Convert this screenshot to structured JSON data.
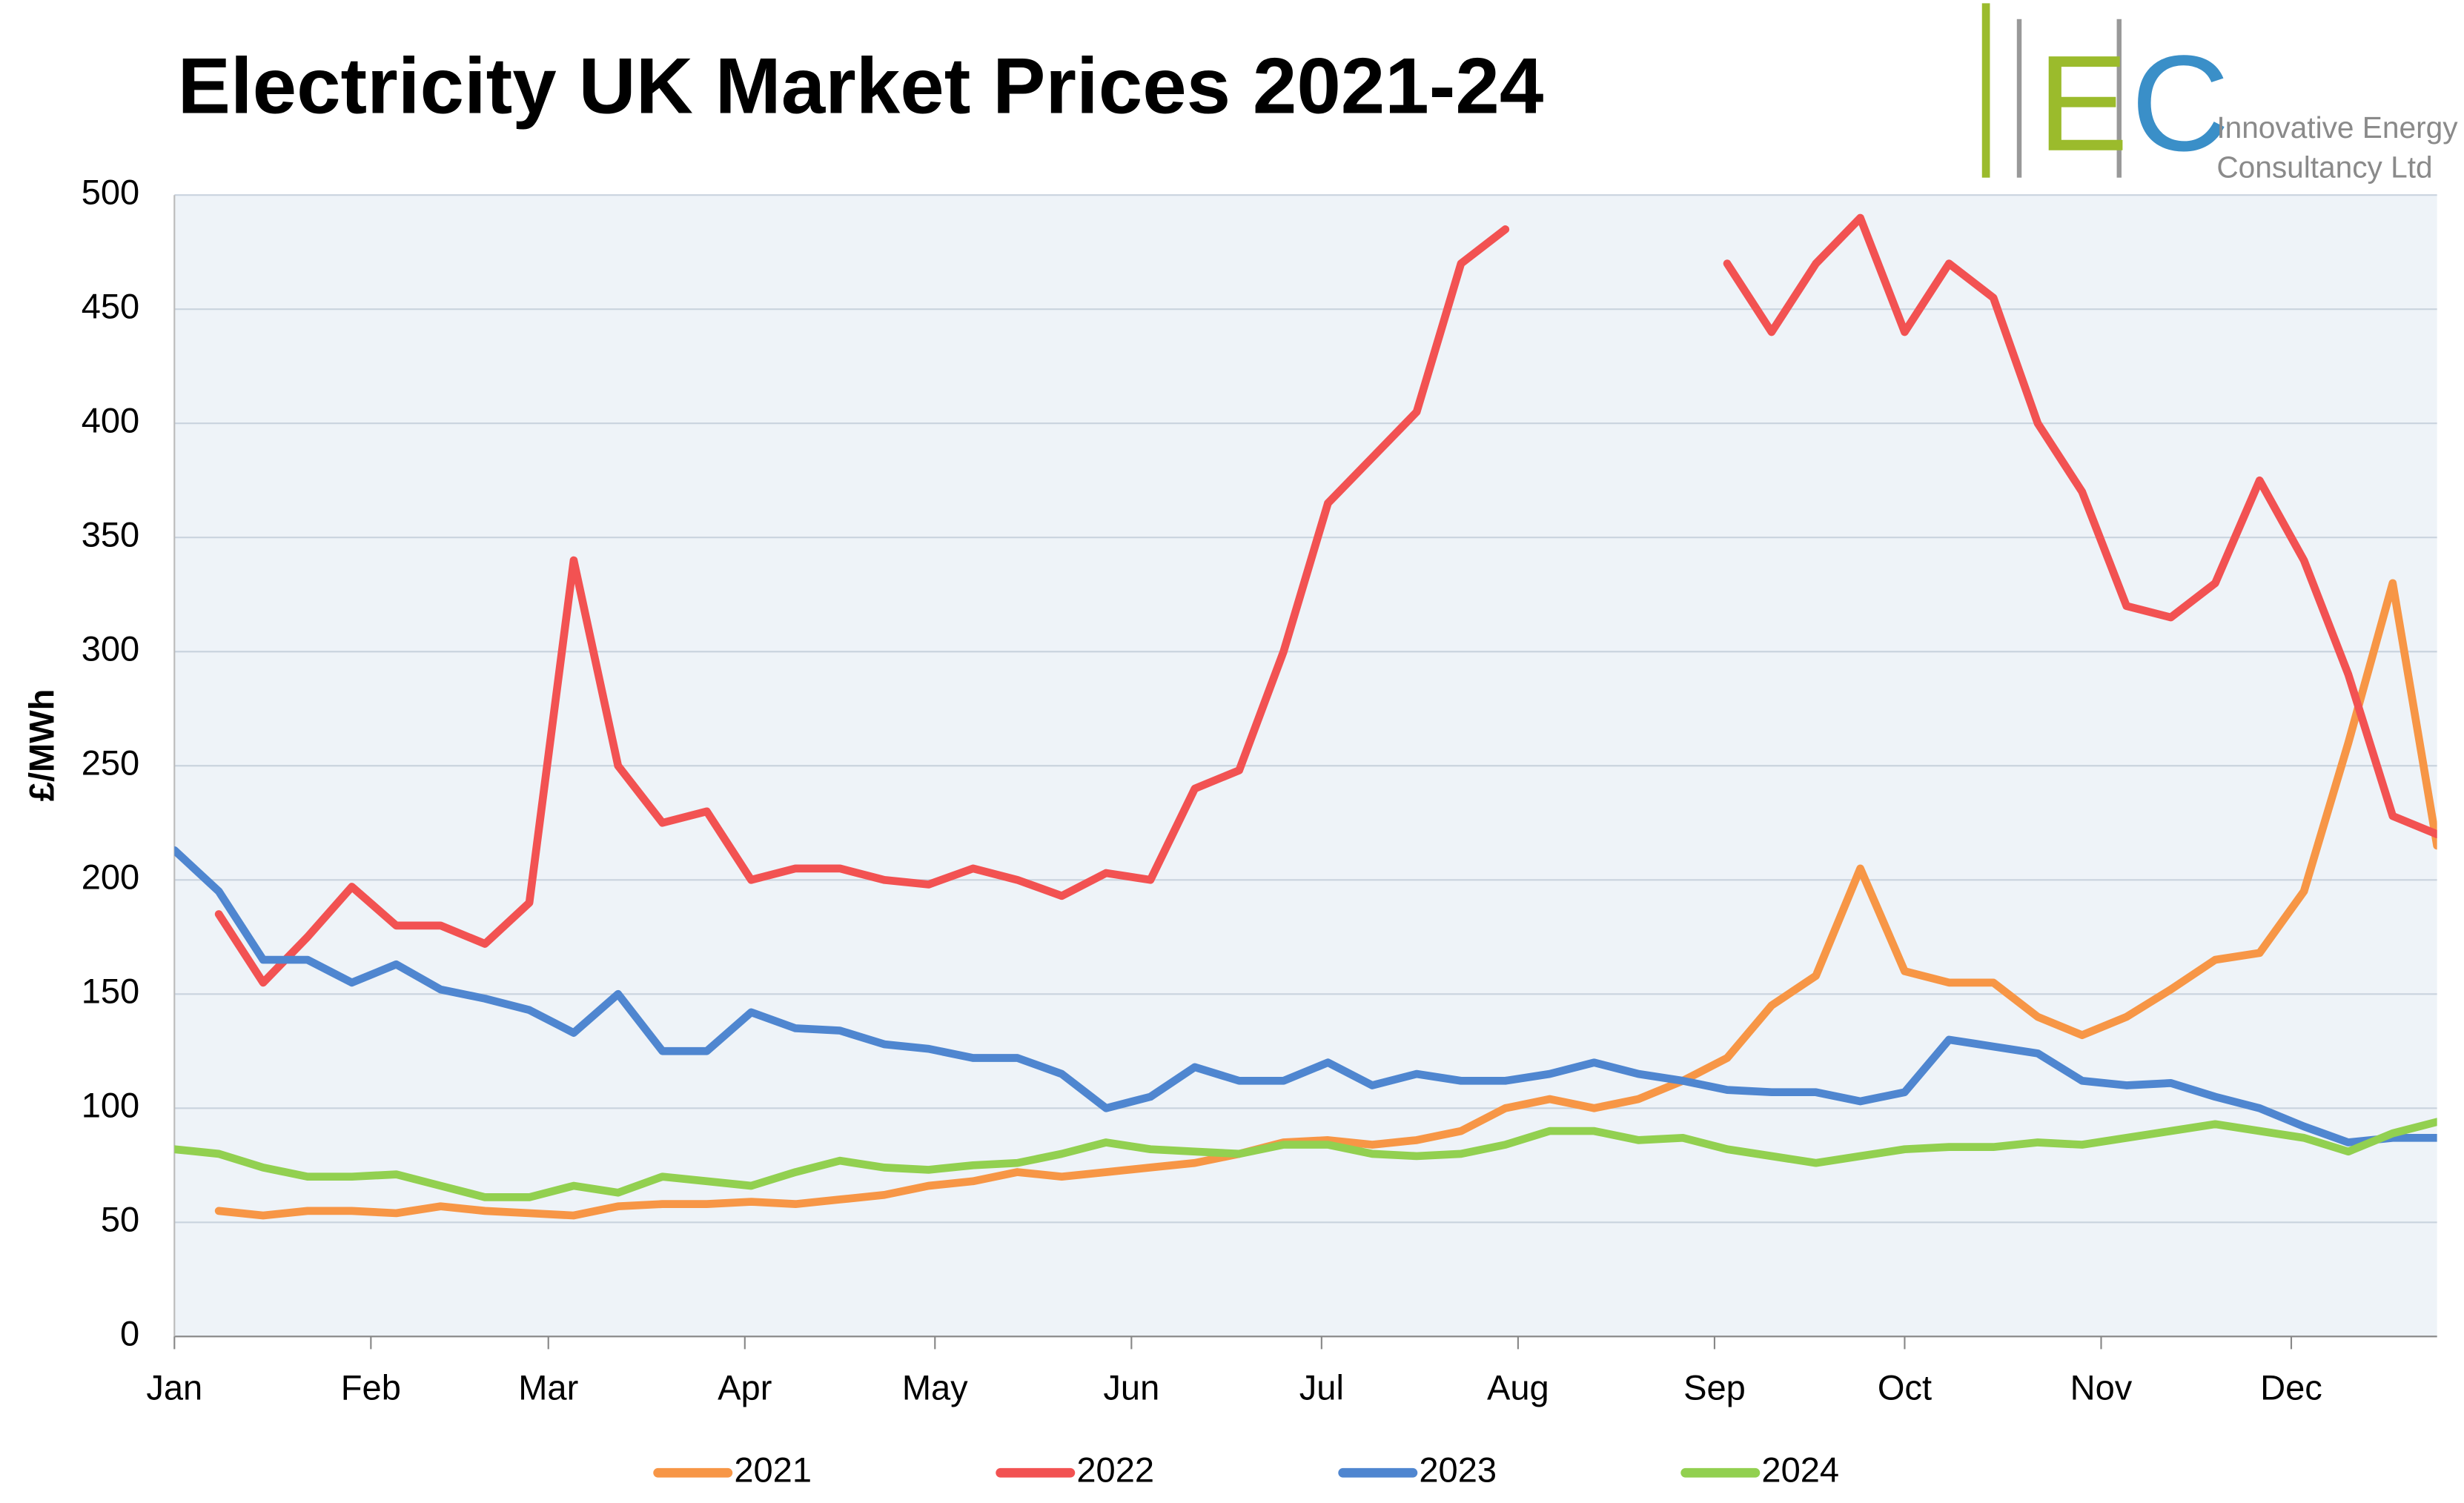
{
  "chart_data": {
    "type": "line",
    "title": "Electricity UK Market Prices 2021-24",
    "y_label": "£/MWh",
    "x": [
      0,
      7,
      14,
      21,
      28,
      35,
      42,
      49,
      56,
      63,
      70,
      77,
      84,
      91,
      98,
      105,
      112,
      119,
      126,
      133,
      140,
      147,
      154,
      161,
      168,
      175,
      182,
      189,
      196,
      203,
      210,
      217,
      224,
      231,
      238,
      245,
      252,
      259,
      266,
      273,
      280,
      287,
      294,
      301,
      308,
      315,
      322,
      329,
      336,
      343,
      350,
      357
    ],
    "xlim": [
      0,
      357
    ],
    "xticks": [
      {
        "value": 0,
        "label": "Jan"
      },
      {
        "value": 31,
        "label": "Feb"
      },
      {
        "value": 59,
        "label": "Mar"
      },
      {
        "value": 90,
        "label": "Apr"
      },
      {
        "value": 120,
        "label": "May"
      },
      {
        "value": 151,
        "label": "Jun"
      },
      {
        "value": 181,
        "label": "Jul"
      },
      {
        "value": 212,
        "label": "Aug"
      },
      {
        "value": 243,
        "label": "Sep"
      },
      {
        "value": 273,
        "label": "Oct"
      },
      {
        "value": 304,
        "label": "Nov"
      },
      {
        "value": 334,
        "label": "Dec"
      }
    ],
    "ylim": [
      0,
      500
    ],
    "yticks": [
      0,
      50,
      100,
      150,
      200,
      250,
      300,
      350,
      400,
      450,
      500
    ],
    "grid": true,
    "legend": "bottom",
    "series": [
      {
        "name": "2021",
        "color": "#f79646",
        "values": [
          null,
          55,
          53,
          55,
          55,
          54,
          57,
          55,
          54,
          53,
          57,
          58,
          58,
          59,
          58,
          60,
          62,
          66,
          68,
          72,
          70,
          72,
          74,
          76,
          80,
          85,
          86,
          84,
          86,
          90,
          100,
          104,
          100,
          104,
          112,
          122,
          145,
          158,
          205,
          160,
          155,
          155,
          140,
          132,
          140,
          152,
          165,
          168,
          195,
          260,
          330,
          215
        ]
      },
      {
        "name": "2022",
        "color": "#f25252",
        "values": [
          null,
          185,
          155,
          175,
          197,
          180,
          180,
          172,
          190,
          340,
          250,
          225,
          230,
          200,
          205,
          205,
          200,
          198,
          205,
          200,
          193,
          203,
          200,
          240,
          248,
          300,
          365,
          385,
          405,
          470,
          485,
          null,
          null,
          null,
          null,
          470,
          440,
          470,
          490,
          440,
          470,
          455,
          400,
          370,
          320,
          315,
          330,
          375,
          340,
          290,
          228,
          220
        ]
      },
      {
        "name": "2023",
        "color": "#4f86d0",
        "values": [
          213,
          195,
          165,
          165,
          155,
          163,
          152,
          148,
          143,
          133,
          150,
          125,
          125,
          142,
          135,
          134,
          128,
          126,
          122,
          122,
          115,
          100,
          105,
          118,
          112,
          112,
          120,
          110,
          115,
          112,
          112,
          115,
          120,
          115,
          112,
          108,
          107,
          107,
          103,
          107,
          130,
          127,
          124,
          112,
          110,
          111,
          105,
          100,
          92,
          85,
          87,
          87
        ]
      },
      {
        "name": "2024",
        "color": "#92d050",
        "values": [
          82,
          80,
          74,
          70,
          70,
          71,
          66,
          61,
          61,
          66,
          63,
          70,
          68,
          66,
          72,
          77,
          74,
          73,
          75,
          76,
          80,
          85,
          82,
          81,
          80,
          84,
          84,
          80,
          79,
          80,
          84,
          90,
          90,
          86,
          87,
          82,
          79,
          76,
          79,
          82,
          83,
          83,
          85,
          84,
          87,
          90,
          93,
          90,
          87,
          81,
          89,
          94
        ]
      }
    ]
  },
  "logo": {
    "letters": [
      "E",
      "C"
    ],
    "lines": [
      "Innovative Energy",
      "Consultancy Ltd"
    ]
  }
}
